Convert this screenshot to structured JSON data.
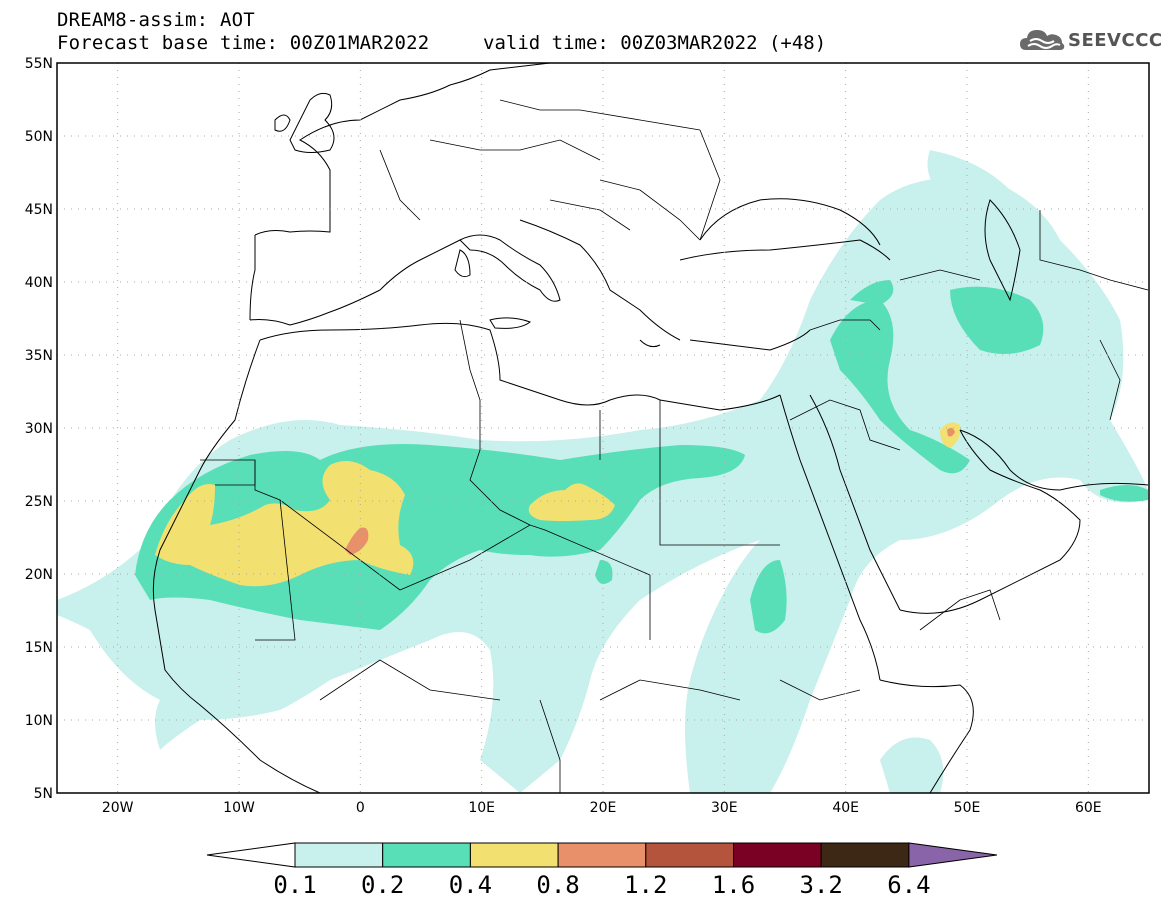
{
  "header": {
    "title": "DREAM8-assim: AOT",
    "base_time": "Forecast base time: 00Z01MAR2022",
    "valid_time": "valid time: 00Z03MAR2022 (+48)",
    "logo_text": "SEEVCCC"
  },
  "map": {
    "lat_labels": [
      "55N",
      "50N",
      "45N",
      "40N",
      "35N",
      "30N",
      "25N",
      "20N",
      "15N",
      "10N",
      "5N"
    ],
    "lon_labels": [
      "20W",
      "10W",
      "0",
      "10E",
      "20E",
      "30E",
      "40E",
      "50E",
      "60E"
    ],
    "lon_range": [
      -25,
      65
    ],
    "lat_range": [
      5,
      55
    ]
  },
  "legend": {
    "levels": [
      "0.1",
      "0.2",
      "0.4",
      "0.8",
      "1.2",
      "1.6",
      "3.2",
      "6.4"
    ],
    "colors": [
      "#ffffff",
      "#c8f0ec",
      "#58dfb8",
      "#f2e070",
      "#e8906a",
      "#b4543c",
      "#7a0024",
      "#3c2814",
      "#8a64a8"
    ]
  },
  "colors": {
    "c1": "#c8f0ec",
    "c2": "#58dfb8",
    "c3": "#f2e070",
    "c4": "#e8906a"
  }
}
